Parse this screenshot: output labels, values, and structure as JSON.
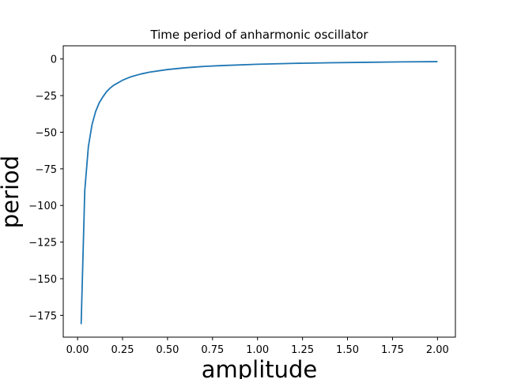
{
  "chart_data": {
    "type": "line",
    "title": "Time period of anharmonic oscillator",
    "xlabel": "amplitude",
    "ylabel": "period",
    "xlim": [
      -0.0795,
      2.0995
    ],
    "ylim": [
      -189.9,
      9.0
    ],
    "xticks": [
      0.0,
      0.25,
      0.5,
      0.75,
      1.0,
      1.25,
      1.5,
      1.75,
      2.0
    ],
    "xtick_labels": [
      "0.00",
      "0.25",
      "0.50",
      "0.75",
      "1.00",
      "1.25",
      "1.50",
      "1.75",
      "2.00"
    ],
    "yticks": [
      0,
      -25,
      -50,
      -75,
      -100,
      -125,
      -150,
      -175
    ],
    "ytick_labels": [
      "0",
      "−25",
      "−50",
      "−75",
      "−100",
      "−125",
      "−150",
      "−175"
    ],
    "grid": false,
    "legend": "none",
    "series": [
      {
        "color": "#1f77b4",
        "x": [
          0.02,
          0.04,
          0.06,
          0.08,
          0.1,
          0.12,
          0.14,
          0.16,
          0.18,
          0.2,
          0.25,
          0.3,
          0.35,
          0.4,
          0.5,
          0.6,
          0.7,
          0.8,
          1.0,
          1.2,
          1.4,
          1.6,
          1.8,
          2.0
        ],
        "y": [
          -181,
          -90,
          -60,
          -45,
          -36,
          -30,
          -26,
          -22.5,
          -20,
          -18,
          -14.5,
          -12,
          -10.3,
          -9,
          -7.2,
          -6,
          -5.1,
          -4.5,
          -3.6,
          -3,
          -2.6,
          -2.3,
          -2.0,
          -1.8
        ]
      }
    ]
  }
}
